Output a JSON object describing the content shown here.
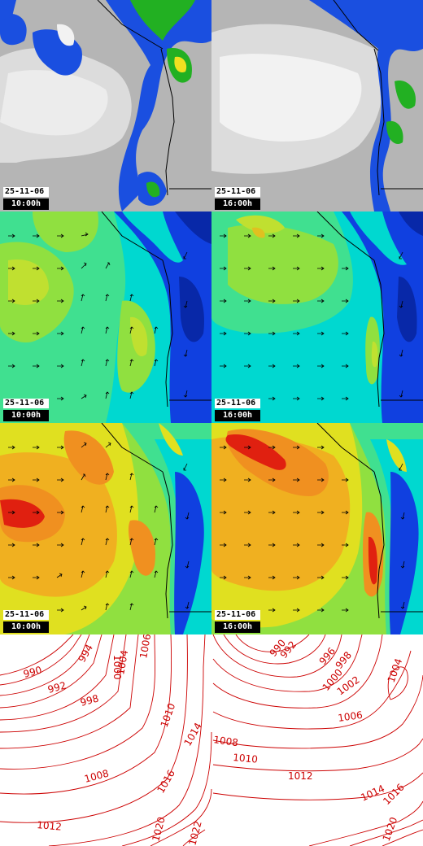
{
  "panels": [
    {
      "row": "cloud",
      "date": "25-11-06",
      "time": "10:00h"
    },
    {
      "row": "cloud",
      "date": "25-11-06",
      "time": "16:00h"
    },
    {
      "row": "wind-low",
      "date": "25-11-06",
      "time": "10:00h"
    },
    {
      "row": "wind-low",
      "date": "25-11-06",
      "time": "16:00h"
    },
    {
      "row": "wind-high",
      "date": "25-11-06",
      "time": "10:00h"
    },
    {
      "row": "wind-high",
      "date": "25-11-06",
      "time": "16:00h"
    }
  ],
  "pressure": {
    "left_labels": [
      "990",
      "992",
      "994",
      "998",
      "1000",
      "1004",
      "1006",
      "1010",
      "1014",
      "1016",
      "1008",
      "1012",
      "1020",
      "1022"
    ],
    "right_labels": [
      "990",
      "992",
      "996",
      "998",
      "1000",
      "1002",
      "1004",
      "1006",
      "1008",
      "1010",
      "1012",
      "1014",
      "1016",
      "1020"
    ]
  },
  "colors": {
    "isobar": "#cc0000",
    "cloud_gray": "#b5b5b5",
    "cloud_white": "#f2f2f2",
    "precip_blue": "#1a4fe0",
    "precip_green": "#22b022",
    "precip_yellow": "#f0e020",
    "wind_blue": "#1040e0",
    "wind_cyan": "#00e0e0",
    "wind_green": "#80e040",
    "wind_yellow": "#e0e020",
    "wind_orange": "#f09020",
    "wind_red": "#e02010"
  }
}
